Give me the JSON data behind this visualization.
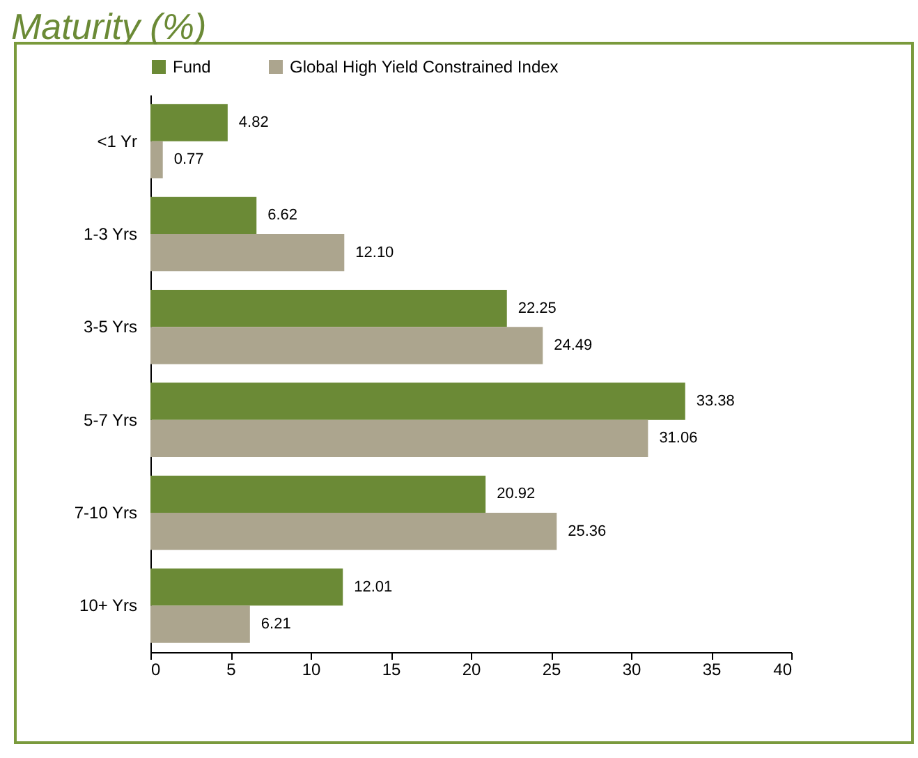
{
  "chart_data": {
    "type": "bar",
    "orientation": "horizontal",
    "title": "Maturity (%)",
    "categories": [
      "<1 Yr",
      "1-3 Yrs",
      "3-5 Yrs",
      "5-7 Yrs",
      "7-10 Yrs",
      "10+ Yrs"
    ],
    "series": [
      {
        "name": "Fund",
        "color": "#6b8a36",
        "values": [
          4.82,
          6.62,
          22.25,
          33.38,
          20.92,
          12.01
        ],
        "value_labels": [
          "4.82",
          "6.62",
          "22.25",
          "33.38",
          "20.92",
          "12.01"
        ]
      },
      {
        "name": "Global High Yield Constrained Index",
        "color": "#aca58e",
        "values": [
          0.77,
          12.1,
          24.49,
          31.06,
          25.36,
          6.21
        ],
        "value_labels": [
          "0.77",
          "12.10",
          "24.49",
          "31.06",
          "25.36",
          "6.21"
        ]
      }
    ],
    "xlim": [
      0,
      40
    ],
    "xticks": [
      0,
      5,
      10,
      15,
      20,
      25,
      30,
      35,
      40
    ],
    "legend": "top",
    "grid": false
  }
}
